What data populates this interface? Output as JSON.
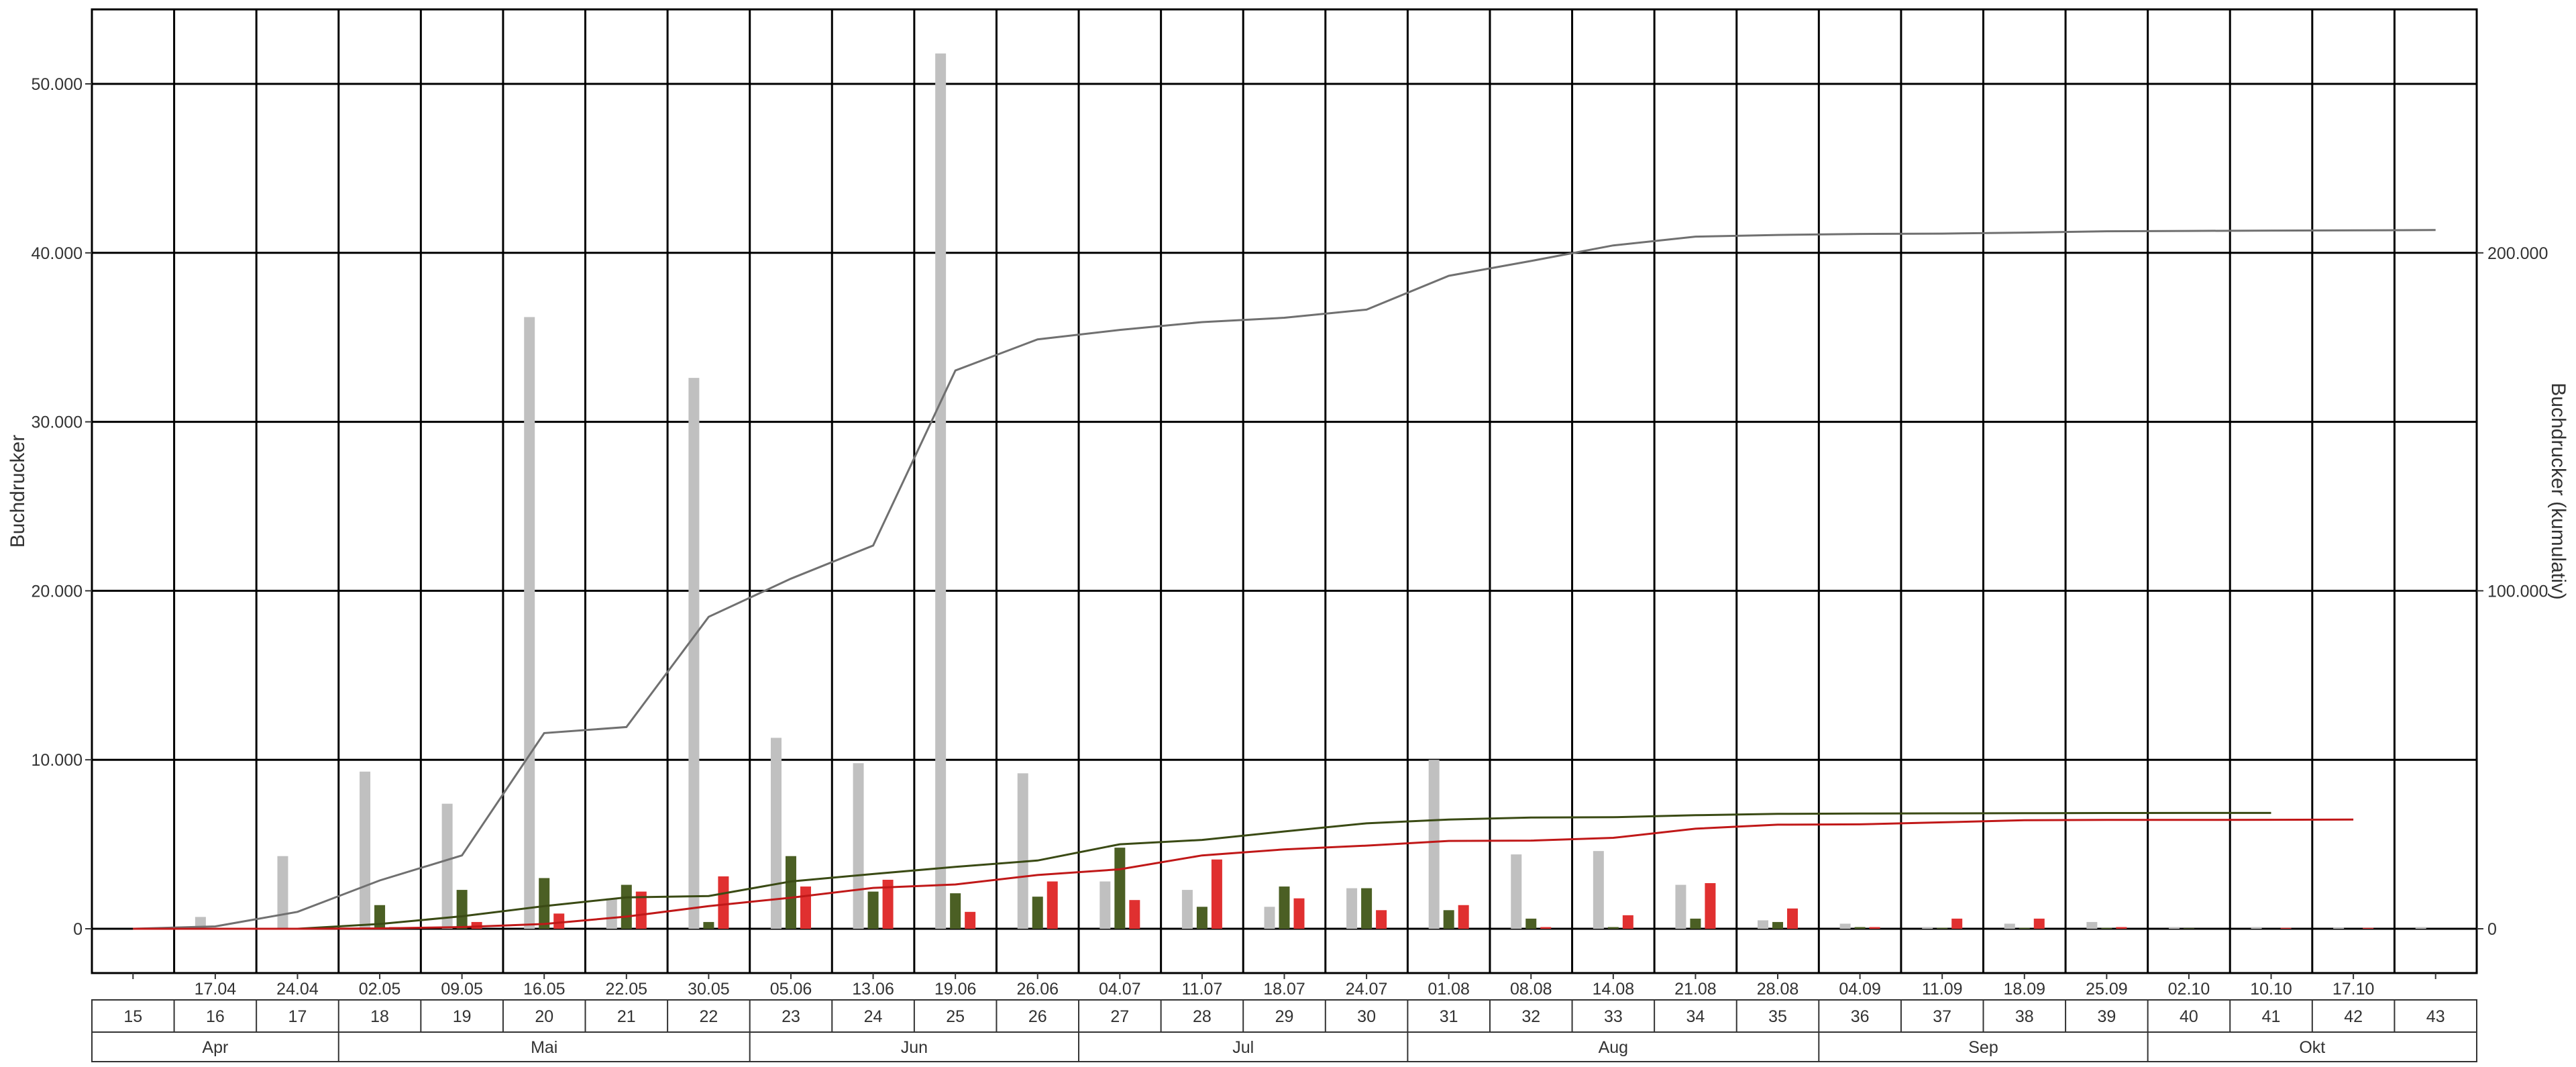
{
  "chart_data": {
    "type": "bar",
    "ylabel_left": "Buchdrucker",
    "ylabel_right": "Buchdrucker (kumulativ)",
    "ylim_left": [
      0,
      52000
    ],
    "ylim_right": [
      0,
      260000
    ],
    "left_ticks": [
      {
        "value": 0,
        "label": "0"
      },
      {
        "value": 10000,
        "label": "10.000"
      },
      {
        "value": 20000,
        "label": "20.000"
      },
      {
        "value": 30000,
        "label": "30.000"
      },
      {
        "value": 40000,
        "label": "40.000"
      },
      {
        "value": 50000,
        "label": "50.000"
      }
    ],
    "right_ticks": [
      {
        "value": 0,
        "label": "0"
      },
      {
        "value": 100000,
        "label": "100.000"
      },
      {
        "value": 200000,
        "label": "200.000"
      }
    ],
    "weeks": [
      "15",
      "16",
      "17",
      "18",
      "19",
      "20",
      "21",
      "22",
      "23",
      "24",
      "25",
      "26",
      "27",
      "28",
      "29",
      "30",
      "31",
      "32",
      "33",
      "34",
      "35",
      "36",
      "37",
      "38",
      "39",
      "40",
      "41",
      "42",
      "43"
    ],
    "dates": [
      "",
      "17.04",
      "24.04",
      "02.05",
      "09.05",
      "16.05",
      "22.05",
      "30.05",
      "05.06",
      "13.06",
      "19.06",
      "26.06",
      "04.07",
      "11.07",
      "18.07",
      "24.07",
      "01.08",
      "08.08",
      "14.08",
      "21.08",
      "28.08",
      "04.09",
      "11.09",
      "18.09",
      "25.09",
      "02.10",
      "10.10",
      "17.10",
      ""
    ],
    "months": [
      {
        "label": "Apr",
        "start": 0,
        "end": 3
      },
      {
        "label": "Mai",
        "start": 3,
        "end": 8
      },
      {
        "label": "Jun",
        "start": 8,
        "end": 12
      },
      {
        "label": "Jul",
        "start": 12,
        "end": 16
      },
      {
        "label": "Aug",
        "start": 16,
        "end": 21
      },
      {
        "label": "Sep",
        "start": 21,
        "end": 25
      },
      {
        "label": "Okt",
        "start": 25,
        "end": 29
      }
    ],
    "series": [
      {
        "color": "#c0c0c0",
        "values": [
          0,
          700,
          4300,
          9300,
          7400,
          36200,
          1800,
          32600,
          11300,
          9800,
          51800,
          9200,
          2800,
          2300,
          1300,
          2400,
          10000,
          4400,
          4600,
          2600,
          500,
          300,
          100,
          300,
          400,
          100,
          100,
          50,
          100
        ],
        "cumulative": [
          0,
          700,
          5000,
          14300,
          21700,
          57900,
          59700,
          92300,
          103600,
          113400,
          165200,
          174400,
          177200,
          179500,
          180800,
          183200,
          193200,
          197600,
          202200,
          204800,
          205300,
          205600,
          205700,
          206000,
          206400,
          206500,
          206600,
          206650,
          206750
        ]
      },
      {
        "color": "#4b5f24",
        "values": [
          0,
          0,
          0,
          1400,
          2300,
          3000,
          2600,
          400,
          4300,
          2200,
          2100,
          1900,
          4800,
          1300,
          2500,
          2400,
          1100,
          600,
          100,
          600,
          400,
          100,
          50,
          50,
          50,
          30,
          0,
          0,
          null
        ],
        "cumulative": [
          0,
          0,
          0,
          1400,
          3700,
          6700,
          9300,
          9700,
          14000,
          16200,
          18300,
          20200,
          25000,
          26300,
          28800,
          31200,
          32300,
          32900,
          33000,
          33600,
          34000,
          34100,
          34150,
          34200,
          34250,
          34280,
          34280,
          null,
          null
        ]
      },
      {
        "color": "#e03030",
        "values": [
          0,
          0,
          0,
          100,
          400,
          900,
          2200,
          3100,
          2500,
          2900,
          1000,
          2800,
          1700,
          4100,
          1800,
          1100,
          1400,
          100,
          800,
          2700,
          1200,
          100,
          600,
          600,
          100,
          0,
          50,
          50,
          null
        ],
        "cumulative": [
          0,
          0,
          0,
          100,
          500,
          1400,
          3600,
          6700,
          9200,
          12100,
          13100,
          15900,
          17600,
          21700,
          23500,
          24600,
          26000,
          26100,
          26900,
          29600,
          30800,
          30900,
          31500,
          32100,
          32200,
          32200,
          32250,
          32300,
          null
        ]
      }
    ]
  }
}
